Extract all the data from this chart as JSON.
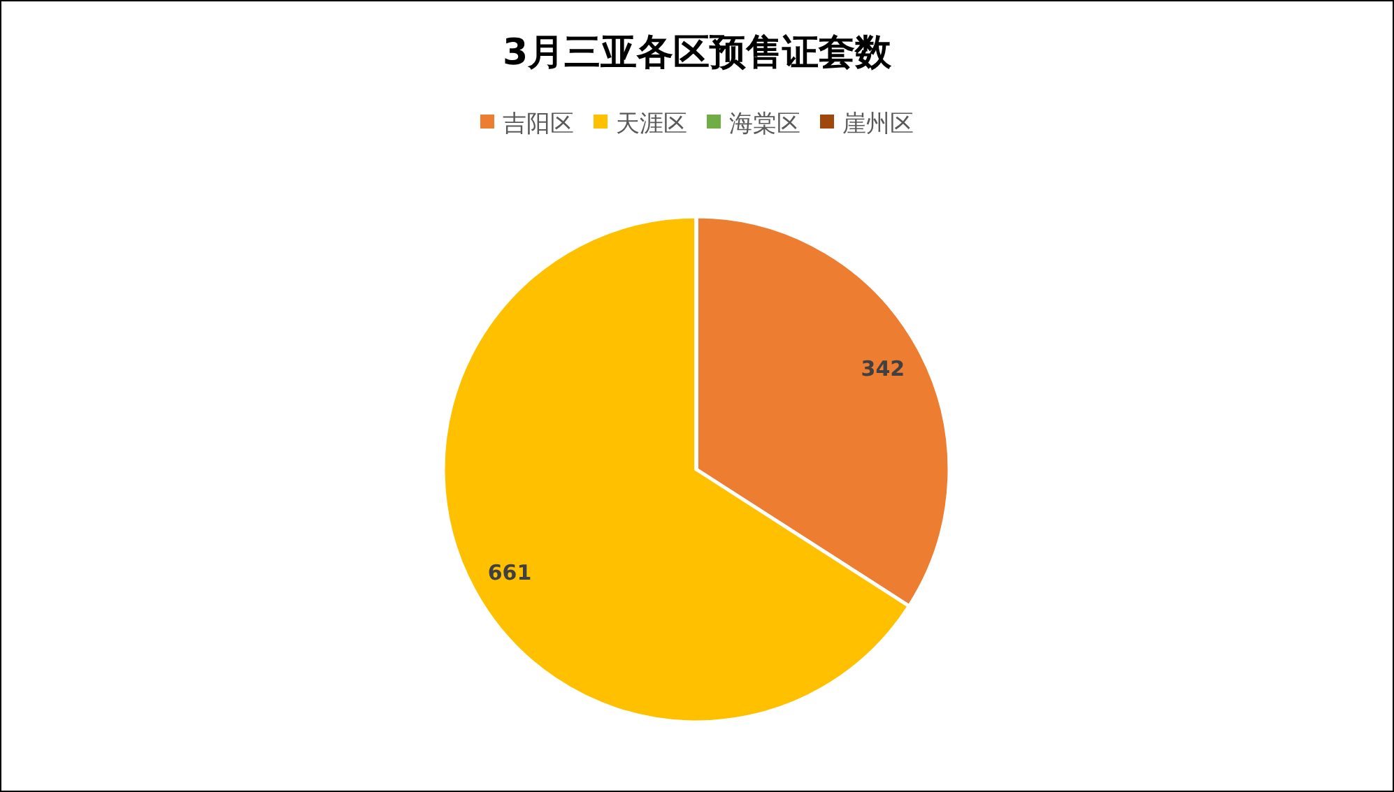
{
  "chart_data": {
    "type": "pie",
    "title": "3月三亚各区预售证套数",
    "categories": [
      "吉阳区",
      "天涯区",
      "海棠区",
      "崖州区"
    ],
    "values": [
      342,
      661,
      0,
      0
    ],
    "colors": [
      "#ed7d31",
      "#ffc000",
      "#70ad47",
      "#9e480e"
    ],
    "value_labels": [
      "342",
      "661",
      null,
      null
    ],
    "legend": "top"
  }
}
